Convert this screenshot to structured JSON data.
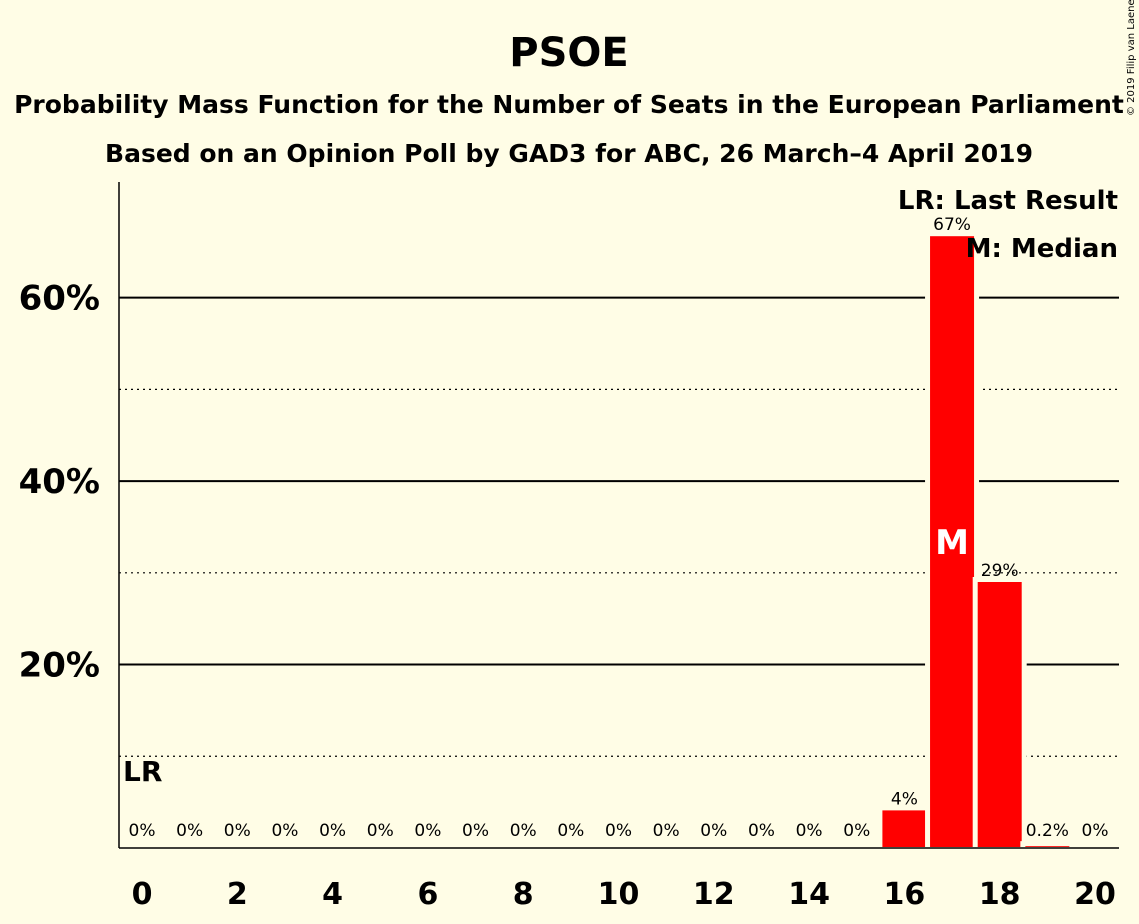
{
  "chart_data": {
    "type": "bar",
    "title": "PSOE",
    "subtitle_1": "Probability Mass Function for the Number of Seats in the European Parliament",
    "subtitle_2": "Based on an Opinion Poll by GAD3 for ABC, 26 March–4 April 2019",
    "copyright": "© 2019 Filip van Laenen",
    "x": [
      0,
      1,
      2,
      3,
      4,
      5,
      6,
      7,
      8,
      9,
      10,
      11,
      12,
      13,
      14,
      15,
      16,
      17,
      18,
      19,
      20
    ],
    "values": [
      0,
      0,
      0,
      0,
      0,
      0,
      0,
      0,
      0,
      0,
      0,
      0,
      0,
      0,
      0,
      0,
      4.1,
      66.7,
      29.0,
      0.2,
      0
    ],
    "labels": [
      "0%",
      "0%",
      "0%",
      "0%",
      "0%",
      "0%",
      "0%",
      "0%",
      "0%",
      "0%",
      "0%",
      "0%",
      "0%",
      "0%",
      "0%",
      "0%",
      "4%",
      "67%",
      "29%",
      "0.2%",
      "0%"
    ],
    "xticks": [
      "0",
      "2",
      "4",
      "6",
      "8",
      "10",
      "12",
      "14",
      "16",
      "18",
      "20"
    ],
    "yticks": [
      "20%",
      "40%",
      "60%"
    ],
    "ylim": [
      0,
      72.5
    ],
    "grid_solid": [
      20,
      40,
      60
    ],
    "grid_dotted": [
      10,
      30,
      50
    ],
    "last_result_seat": 0,
    "last_result_label": "LR",
    "median_seat": 17,
    "median_label": "M",
    "legend": {
      "lr_key": "LR",
      "lr_text": ": Last Result",
      "m_key": "M",
      "m_text": ": Median",
      "position": "top-right"
    },
    "colors": {
      "bar": "#FF0000",
      "background": "#FFFDE6",
      "axis": "#000000"
    }
  }
}
